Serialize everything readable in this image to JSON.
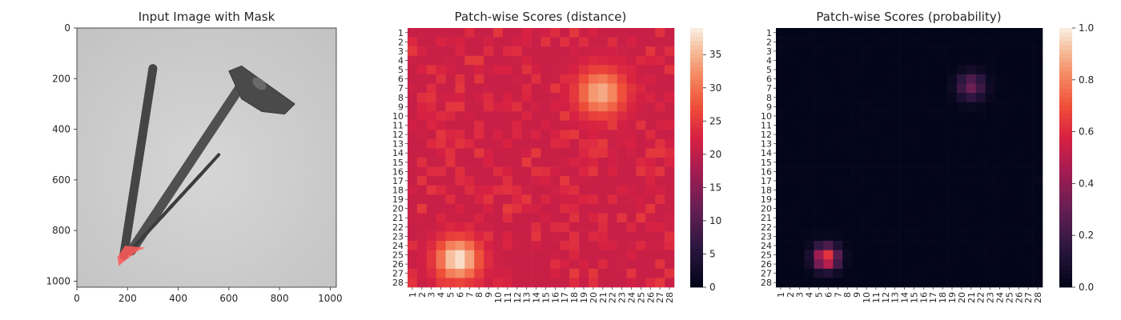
{
  "chart_data": [
    {
      "type": "image",
      "title": "Input Image with Mask",
      "xlim": [
        0,
        1024
      ],
      "ylim": [
        0,
        1024
      ],
      "xticks": [
        0,
        200,
        400,
        600,
        800,
        1000
      ],
      "yticks": [
        0,
        200,
        400,
        600,
        800,
        1000
      ],
      "tick_labels_x": [
        "0",
        "200",
        "400",
        "600",
        "800",
        "1000"
      ],
      "tick_labels_y": [
        "0",
        "200",
        "400",
        "600",
        "800",
        "1000"
      ],
      "objects": [
        {
          "name": "screw",
          "color": "#4a4a4a"
        },
        {
          "name": "mask",
          "color": "#ff5a5a",
          "region": {
            "x": [
              150,
              260
            ],
            "y": [
              860,
              930
            ]
          }
        }
      ]
    },
    {
      "type": "heatmap",
      "title": "Patch-wise Scores (distance)",
      "rows": 28,
      "cols": 28,
      "xticklabels": [
        "1",
        "2",
        "3",
        "4",
        "5",
        "6",
        "7",
        "8",
        "9",
        "10",
        "11",
        "12",
        "13",
        "14",
        "15",
        "16",
        "17",
        "18",
        "19",
        "20",
        "21",
        "22",
        "23",
        "24",
        "25",
        "26",
        "27",
        "28"
      ],
      "yticklabels": [
        "1",
        "2",
        "3",
        "4",
        "5",
        "6",
        "7",
        "8",
        "9",
        "10",
        "11",
        "12",
        "13",
        "14",
        "15",
        "16",
        "17",
        "18",
        "19",
        "20",
        "21",
        "22",
        "23",
        "24",
        "25",
        "26",
        "27",
        "28"
      ],
      "vmin": 0,
      "vmax": 39,
      "colorbar_ticks": [
        0,
        5,
        10,
        15,
        20,
        25,
        30,
        35
      ],
      "colormap": "rocket",
      "baseline": 21,
      "hotspots": [
        {
          "row": 25.5,
          "col": 5.8,
          "peak": 39,
          "spread": 1.6
        },
        {
          "row": 7.5,
          "col": 20.8,
          "peak": 35,
          "spread": 1.8
        }
      ]
    },
    {
      "type": "heatmap",
      "title": "Patch-wise Scores (probability)",
      "rows": 28,
      "cols": 28,
      "xticklabels": [
        "1",
        "2",
        "3",
        "4",
        "5",
        "6",
        "7",
        "8",
        "9",
        "10",
        "11",
        "12",
        "13",
        "14",
        "15",
        "16",
        "17",
        "18",
        "19",
        "20",
        "21",
        "22",
        "23",
        "24",
        "25",
        "26",
        "27",
        "28"
      ],
      "yticklabels": [
        "1",
        "2",
        "3",
        "4",
        "5",
        "6",
        "7",
        "8",
        "9",
        "10",
        "11",
        "12",
        "13",
        "14",
        "15",
        "16",
        "17",
        "18",
        "19",
        "20",
        "21",
        "22",
        "23",
        "24",
        "25",
        "26",
        "27",
        "28"
      ],
      "vmin": 0,
      "vmax": 1,
      "colorbar_ticks": [
        0.0,
        0.2,
        0.4,
        0.6,
        0.8,
        1.0
      ],
      "colorbar_labels": [
        "0.0",
        "0.2",
        "0.4",
        "0.6",
        "0.8",
        "1.0"
      ],
      "colormap": "rocket",
      "baseline": 0,
      "hotspots": [
        {
          "row": 25.3,
          "col": 5.8,
          "peak": 0.68,
          "spread": 0.9
        },
        {
          "row": 6.8,
          "col": 21.0,
          "peak": 0.32,
          "spread": 1.0
        }
      ]
    }
  ]
}
